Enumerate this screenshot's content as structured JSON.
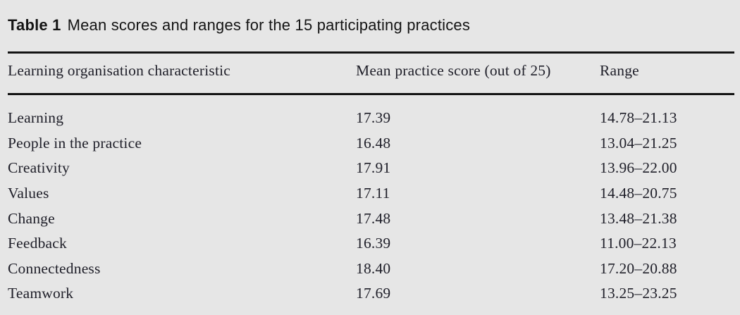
{
  "title": {
    "label": "Table 1",
    "text": "Mean scores and ranges for the 15 participating practices"
  },
  "table": {
    "columns": [
      "Learning organisation characteristic",
      "Mean practice score (out of 25)",
      "Range"
    ],
    "rows": [
      {
        "characteristic": "Learning",
        "mean": "17.39",
        "range": "14.78–21.13"
      },
      {
        "characteristic": "People in the practice",
        "mean": "16.48",
        "range": "13.04–21.25"
      },
      {
        "characteristic": "Creativity",
        "mean": "17.91",
        "range": "13.96–22.00"
      },
      {
        "characteristic": "Values",
        "mean": "17.11",
        "range": "14.48–20.75"
      },
      {
        "characteristic": "Change",
        "mean": "17.48",
        "range": "13.48–21.38"
      },
      {
        "characteristic": "Feedback",
        "mean": "16.39",
        "range": "11.00–22.13"
      },
      {
        "characteristic": "Connectedness",
        "mean": "18.40",
        "range": "17.20–20.88"
      },
      {
        "characteristic": "Teamwork",
        "mean": "17.69",
        "range": "13.25–23.25"
      }
    ]
  },
  "colors": {
    "background": "#e6e6e6",
    "rule": "#131313",
    "body_text": "#20202a",
    "title_text": "#141414"
  }
}
